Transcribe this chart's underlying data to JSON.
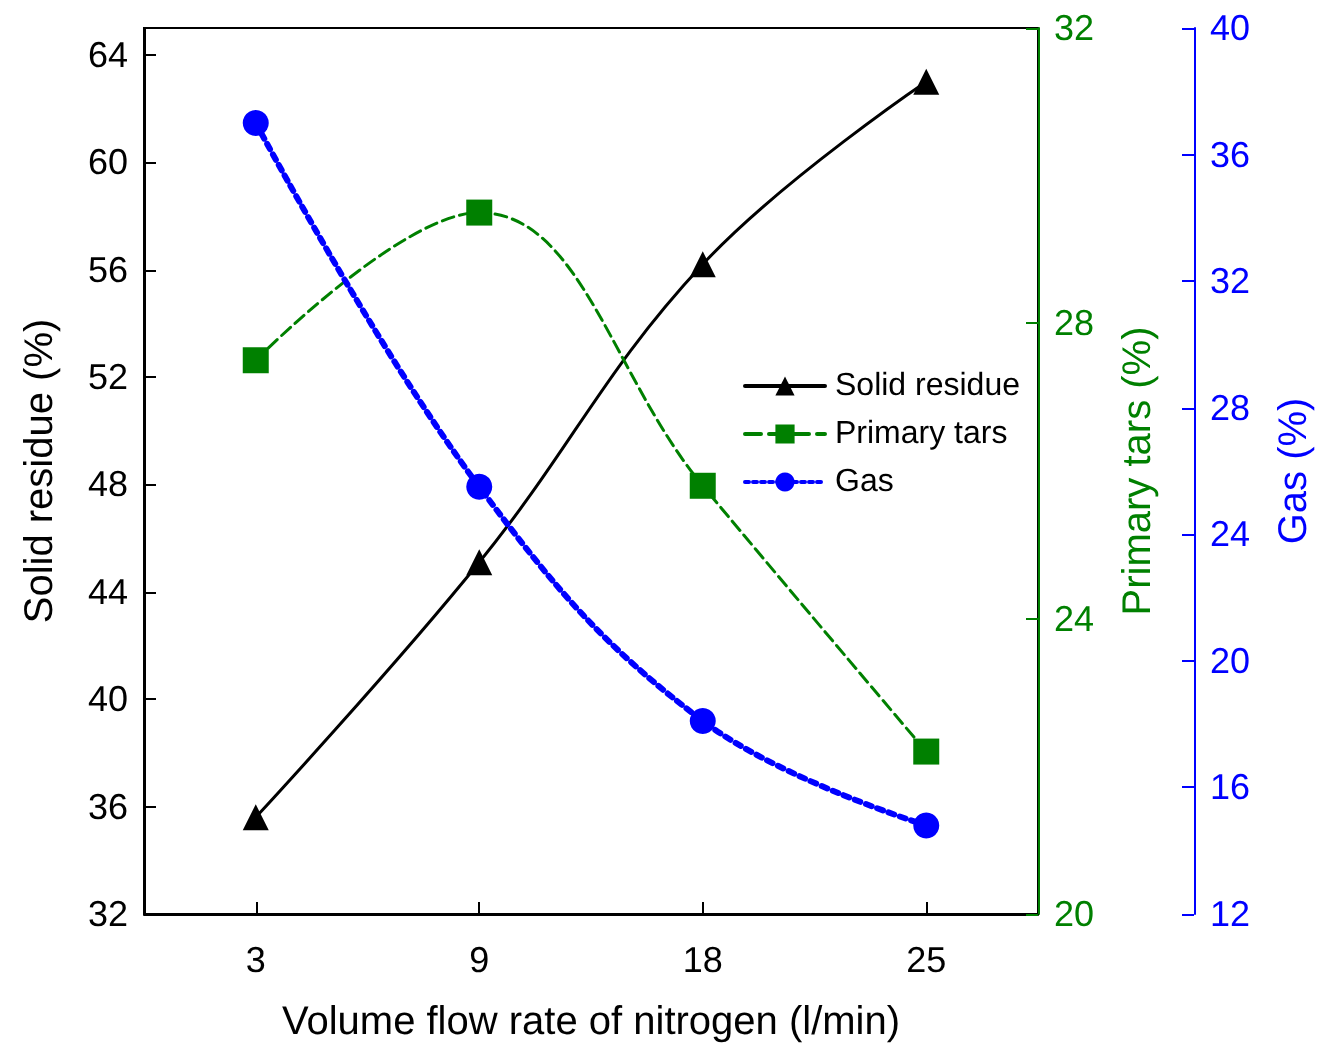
{
  "chart_data": {
    "type": "line",
    "xlabel": "Volume flow rate of nitrogen (l/min)",
    "ylabel": "Solid residue (%)",
    "y2label": "Primary tars (%)",
    "y3label": "Gas (%)",
    "categories": [
      "3",
      "9",
      "18",
      "25"
    ],
    "series": [
      {
        "name": "Solid residue",
        "color": "#000000",
        "marker": "triangle",
        "line_style": "solid",
        "values": [
          35.6,
          45.1,
          56.2,
          63.0
        ]
      },
      {
        "name": "Primary tars",
        "color": "#008000",
        "marker": "square",
        "line_style": "dashed",
        "axis": "y2",
        "values": [
          27.5,
          29.5,
          25.8,
          22.2
        ]
      },
      {
        "name": "Gas",
        "color": "#0000ff",
        "marker": "circle",
        "line_style": "dotted",
        "axis": "y3",
        "values": [
          37.0,
          25.5,
          18.1,
          14.8
        ]
      }
    ],
    "ylim": [
      32,
      65
    ],
    "yticks": [
      32,
      36,
      40,
      44,
      48,
      52,
      56,
      60,
      64
    ],
    "y2lim": [
      20,
      32
    ],
    "y2ticks": [
      20,
      24,
      28,
      32
    ],
    "y3lim": [
      12,
      40
    ],
    "y3ticks": [
      12,
      16,
      20,
      24,
      28,
      32,
      36,
      40
    ],
    "grid": false,
    "legend": "right"
  }
}
